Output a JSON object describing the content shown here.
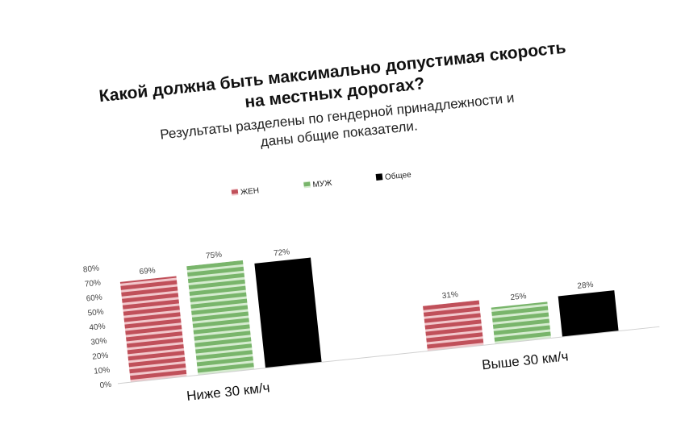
{
  "chart_data": {
    "type": "bar",
    "title_lines": [
      "Какой должна быть максимально допустимая скорость",
      "на местных дорогах?"
    ],
    "subtitle_lines": [
      "Результаты разделены по гендерной принадлежности и",
      "даны общие показатели."
    ],
    "categories": [
      "Ниже 30 км/ч",
      "Выше 30 км/ч"
    ],
    "series": [
      {
        "name": "ЖЕН",
        "values": [
          69,
          31
        ],
        "labels": [
          "69%",
          "31%"
        ],
        "color": "#c0505a",
        "stripe": "#f2c8cc"
      },
      {
        "name": "МУЖ",
        "values": [
          75,
          25
        ],
        "labels": [
          "75%",
          "25%"
        ],
        "color": "#79b56b",
        "stripe": "#d6ecd0"
      },
      {
        "name": "Общее",
        "values": [
          72,
          28
        ],
        "labels": [
          "72%",
          "28%"
        ],
        "color": "#000000",
        "stripe": "#000000"
      }
    ],
    "yticks": [
      "0%",
      "10%",
      "20%",
      "30%",
      "40%",
      "50%",
      "60%",
      "70%",
      "80%"
    ],
    "ylim": [
      0,
      80
    ],
    "legend_position": "top-center",
    "grid": false
  }
}
